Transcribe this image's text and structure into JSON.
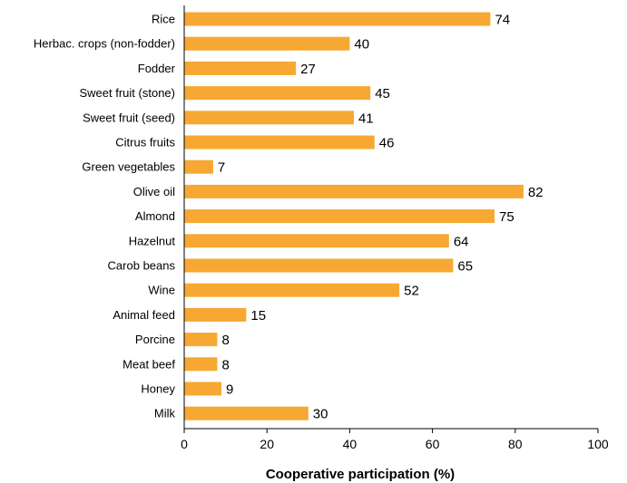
{
  "chart_data": {
    "type": "bar",
    "orientation": "horizontal",
    "categories": [
      "Rice",
      "Herbac. crops (non-fodder)",
      "Fodder",
      "Sweet fruit (stone)",
      "Sweet fruit (seed)",
      "Citrus fruits",
      "Green vegetables",
      "Olive oil",
      "Almond",
      "Hazelnut",
      "Carob beans",
      "Wine",
      "Animal feed",
      "Porcine",
      "Meat beef",
      "Honey",
      "Milk"
    ],
    "values": [
      74,
      40,
      27,
      45,
      41,
      46,
      7,
      82,
      75,
      64,
      65,
      52,
      15,
      8,
      8,
      9,
      30
    ],
    "xlabel": "Cooperative participation (%)",
    "ylabel": "",
    "xlim": [
      0,
      100
    ],
    "xticks": [
      0,
      20,
      40,
      60,
      80,
      100
    ],
    "grid": false,
    "legend": "none",
    "bar_color": "#F7A833",
    "data_labels": true
  }
}
